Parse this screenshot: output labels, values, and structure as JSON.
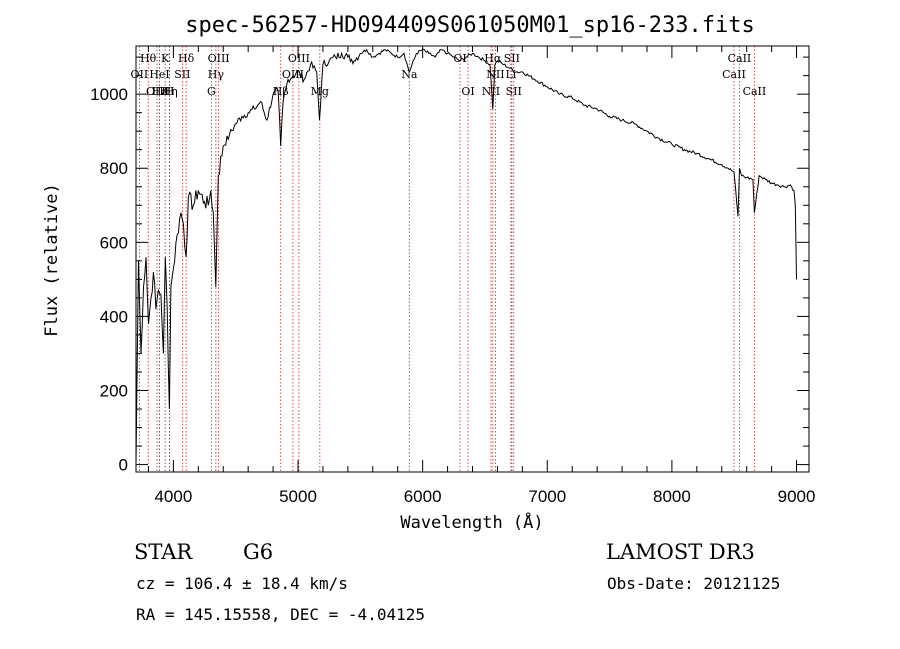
{
  "chart_data": {
    "type": "line",
    "title": "spec-56257-HD094409S061050M01_sp16-233.fits",
    "xlabel": "Wavelength (Å)",
    "ylabel": "Flux (relative)",
    "xlim": [
      3700,
      9100
    ],
    "ylim": [
      -20,
      1130
    ],
    "x_ticks": [
      4000,
      5000,
      6000,
      7000,
      8000,
      9000
    ],
    "x_tick_labels": [
      "4000",
      "5000",
      "6000",
      "7000",
      "8000",
      "9000"
    ],
    "y_ticks": [
      0,
      200,
      400,
      600,
      800,
      1000
    ],
    "y_tick_labels": [
      "0",
      "200",
      "400",
      "600",
      "800",
      "1000"
    ],
    "series": [
      {
        "name": "flux",
        "x": [
          3700,
          3720,
          3740,
          3760,
          3780,
          3800,
          3820,
          3840,
          3860,
          3880,
          3900,
          3920,
          3935,
          3950,
          3968,
          3980,
          4000,
          4030,
          4060,
          4080,
          4102,
          4120,
          4160,
          4200,
          4250,
          4280,
          4300,
          4320,
          4340,
          4360,
          4400,
          4450,
          4500,
          4550,
          4600,
          4650,
          4700,
          4750,
          4800,
          4840,
          4861,
          4880,
          4920,
          4960,
          5000,
          5050,
          5100,
          5150,
          5172,
          5200,
          5250,
          5300,
          5350,
          5400,
          5450,
          5500,
          5550,
          5600,
          5650,
          5700,
          5750,
          5800,
          5850,
          5893,
          5950,
          6000,
          6050,
          6100,
          6150,
          6200,
          6250,
          6300,
          6350,
          6400,
          6450,
          6500,
          6540,
          6563,
          6580,
          6600,
          6650,
          6700,
          6750,
          6800,
          6900,
          7000,
          7100,
          7200,
          7300,
          7400,
          7500,
          7600,
          7700,
          7800,
          7900,
          8000,
          8100,
          8200,
          8300,
          8400,
          8450,
          8498,
          8530,
          8542,
          8560,
          8600,
          8650,
          8662,
          8700,
          8750,
          8800,
          8850,
          8900,
          8950,
          8980,
          8990,
          9000
        ],
        "values": [
          0,
          550,
          300,
          480,
          560,
          380,
          450,
          520,
          420,
          470,
          460,
          300,
          560,
          420,
          150,
          480,
          530,
          620,
          680,
          650,
          560,
          720,
          700,
          740,
          710,
          700,
          740,
          680,
          480,
          780,
          860,
          890,
          920,
          940,
          950,
          960,
          980,
          930,
          1000,
          1010,
          860,
          980,
          1040,
          1050,
          1060,
          1040,
          1080,
          1060,
          930,
          1080,
          1090,
          1100,
          1110,
          1100,
          1090,
          1110,
          1120,
          1100,
          1110,
          1120,
          1110,
          1100,
          1110,
          1060,
          1110,
          1120,
          1110,
          1100,
          1120,
          1110,
          1100,
          1090,
          1100,
          1110,
          1100,
          1090,
          1080,
          960,
          1080,
          1090,
          1080,
          1070,
          1060,
          1060,
          1040,
          1020,
          1000,
          990,
          970,
          960,
          940,
          930,
          920,
          900,
          880,
          865,
          850,
          840,
          825,
          810,
          800,
          790,
          670,
          800,
          780,
          775,
          770,
          680,
          780,
          770,
          760,
          755,
          750,
          755,
          740,
          700,
          500
        ]
      }
    ],
    "lines": [
      {
        "name": "OII",
        "x": 3727,
        "label_row": 1
      },
      {
        "name": "Hθ",
        "x": 3798,
        "label_row": 0
      },
      {
        "name": "OIII",
        "x": 3869,
        "label_row": 2
      },
      {
        "name": "Hε",
        "x": 3889,
        "label_row": 2
      },
      {
        "name": "HeI",
        "x": 3889,
        "label_row": 1
      },
      {
        "name": "K",
        "x": 3934,
        "label_row": 0
      },
      {
        "name": "Hη",
        "x": 3970,
        "label_row": 2
      },
      {
        "name": "H",
        "x": 3969,
        "label_row": 2
      },
      {
        "name": "SII",
        "x": 4072,
        "label_row": 1
      },
      {
        "name": "Hδ",
        "x": 4102,
        "label_row": 0
      },
      {
        "name": "G",
        "x": 4305,
        "label_row": 2
      },
      {
        "name": "Hγ",
        "x": 4341,
        "label_row": 1
      },
      {
        "name": "OIII",
        "x": 4363,
        "label_row": 0
      },
      {
        "name": "Hβ",
        "x": 4861,
        "label_row": 2
      },
      {
        "name": "OIII",
        "x": 4959,
        "label_row": 1
      },
      {
        "name": "OIII",
        "x": 5007,
        "label_row": 0
      },
      {
        "name": "Mg",
        "x": 5175,
        "label_row": 2
      },
      {
        "name": "Na",
        "x": 5893,
        "label_row": 1
      },
      {
        "name": "OI",
        "x": 6300,
        "label_row": 0
      },
      {
        "name": "OI",
        "x": 6364,
        "label_row": 2
      },
      {
        "name": "NII",
        "x": 6548,
        "label_row": 2
      },
      {
        "name": "Hα",
        "x": 6563,
        "label_row": 0
      },
      {
        "name": "NII",
        "x": 6584,
        "label_row": 1
      },
      {
        "name": "SII",
        "x": 6716,
        "label_row": 0
      },
      {
        "name": "Li",
        "x": 6708,
        "label_row": 1
      },
      {
        "name": "SII",
        "x": 6731,
        "label_row": 2
      },
      {
        "name": "CaII",
        "x": 8498,
        "label_row": 1
      },
      {
        "name": "CaII",
        "x": 8542,
        "label_row": 0
      },
      {
        "name": "CaII",
        "x": 8662,
        "label_row": 2
      }
    ]
  },
  "info": {
    "object_class": "STAR",
    "subclass": "G6",
    "cz": "cz = 106.4 ± 18.4 km/s",
    "coords": "RA = 145.15558, DEC =  -4.04125",
    "survey": "LAMOST DR3",
    "obs_date": "Obs-Date: 20121125"
  }
}
